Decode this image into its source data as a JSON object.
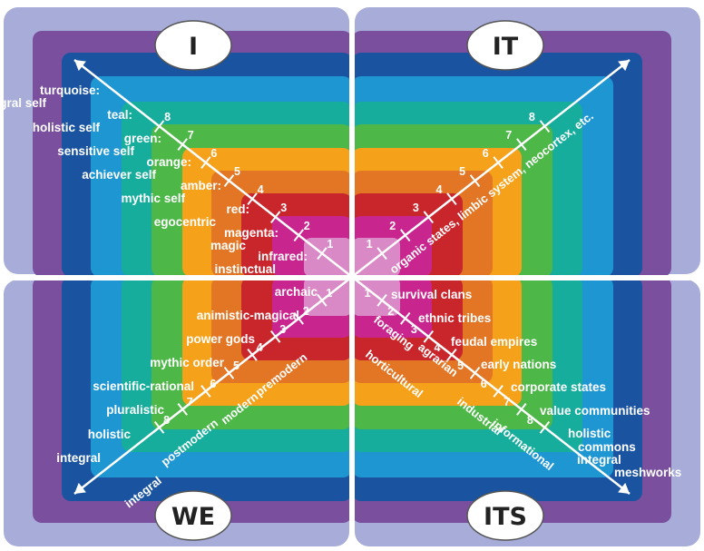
{
  "quadrants": [
    {
      "title": "I"
    },
    {
      "title": "IT"
    },
    {
      "title": "WE"
    },
    {
      "title": "ITS"
    }
  ],
  "level_colors": [
    "#7a4f9e",
    "#1a54a0",
    "#1e96d2",
    "#17ad9c",
    "#4db748",
    "#f6a11a",
    "#e27625",
    "#c9262c",
    "#c8268e"
  ],
  "panel_color": "#a7acd8",
  "center_color": "#d98ac6",
  "i_labels": [
    {
      "text": "turquoise:"
    },
    {
      "text": "integral self"
    },
    {
      "text": "teal:"
    },
    {
      "text": "holistic self"
    },
    {
      "text": "green:"
    },
    {
      "text": "sensitive self"
    },
    {
      "text": "orange:"
    },
    {
      "text": "achiever self"
    },
    {
      "text": "amber:"
    },
    {
      "text": "mythic self"
    },
    {
      "text": "red:"
    },
    {
      "text": "egocentric"
    },
    {
      "text": "magenta:"
    },
    {
      "text": "magic"
    },
    {
      "text": "infrared:"
    },
    {
      "text": "instinctual"
    }
  ],
  "we_labels": [
    {
      "text": "archaic"
    },
    {
      "text": "animistic-magical"
    },
    {
      "text": "power gods"
    },
    {
      "text": "mythic order"
    },
    {
      "text": "scientific-rational"
    },
    {
      "text": "pluralistic"
    },
    {
      "text": "holistic"
    },
    {
      "text": "integral"
    }
  ],
  "its_labels": [
    {
      "text": "survival clans"
    },
    {
      "text": "ethnic tribes"
    },
    {
      "text": "feudal empires"
    },
    {
      "text": "early nations"
    },
    {
      "text": "corporate states"
    },
    {
      "text": "value communities"
    },
    {
      "text": "holistic"
    },
    {
      "text": "commons"
    },
    {
      "text": "integral"
    },
    {
      "text": "meshworks"
    }
  ],
  "it_axis_label": "organic states, limbic system, neocortex, etc.",
  "we_axis_labels": [
    "premodern",
    "modern",
    "postmodern",
    "integral"
  ],
  "its_axis_labels": [
    "foraging",
    "horticultural",
    "agrarian",
    "industrial",
    "informational"
  ],
  "level_numbers": [
    "1",
    "2",
    "3",
    "4",
    "5",
    "6",
    "7",
    "8"
  ]
}
